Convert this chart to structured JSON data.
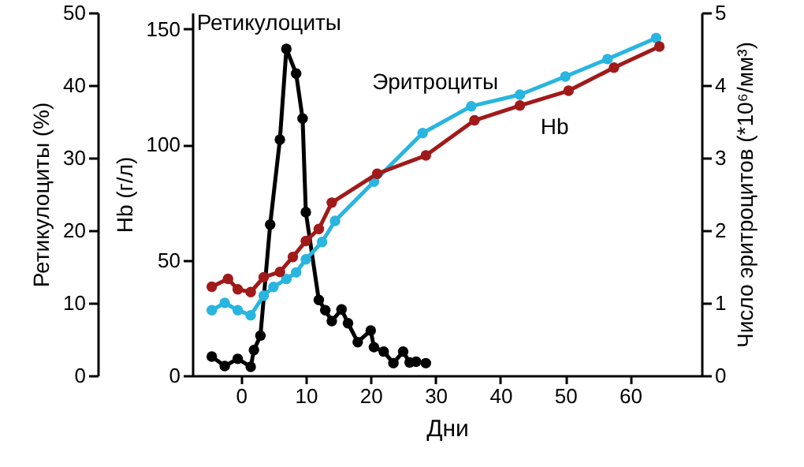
{
  "chart_data": {
    "type": "line",
    "xlabel": "Дни",
    "ylabel": "Hb (г/л)",
    "y2label": "Число эритроцитов (*10⁶/мм³)",
    "y3label": "Ретикулоциты (%)",
    "xlim": [
      -7.5,
      71
    ],
    "xticks": [
      0,
      10,
      20,
      30,
      40,
      50,
      60
    ],
    "ylim": [
      0,
      157
    ],
    "yticks": [
      0,
      50,
      100,
      150
    ],
    "y2lim": [
      0,
      5
    ],
    "y2ticks": [
      0,
      1,
      2,
      3,
      4,
      5
    ],
    "y3lim": [
      0,
      50
    ],
    "y3ticks": [
      0,
      10,
      20,
      30,
      40,
      50
    ],
    "grid": false,
    "marker": "circle",
    "line_style": "solid",
    "series": [
      {
        "name": "Ретикулоциты",
        "color": "#000000",
        "axis": "y3",
        "x": [
          -4.5,
          -2.5,
          -0.5,
          1.5,
          2,
          3,
          4.5,
          6,
          7,
          8.5,
          9.5,
          10,
          12,
          13,
          14,
          15.5,
          16.5,
          18,
          20,
          20.5,
          22,
          23.5,
          25,
          26,
          27,
          28.5
        ],
        "values": [
          2.6,
          1.3,
          2.3,
          1.2,
          3.5,
          5.5,
          20.8,
          32.5,
          45,
          41.6,
          35.4,
          22.5,
          10.4,
          9,
          7.5,
          9.1,
          7.2,
          4.6,
          6.2,
          3.9,
          3.3,
          1.7,
          3.3,
          1.8,
          1.9,
          1.7
        ]
      },
      {
        "name": "Эритроциты",
        "color": "#29b5e0",
        "axis": "y2",
        "x": [
          -4.5,
          -2.5,
          -0.5,
          1.5,
          3.5,
          5,
          7,
          8.5,
          10,
          12.5,
          14.5,
          20.5,
          28,
          35.5,
          43,
          50,
          56.5,
          64
        ],
        "values": [
          0.9,
          1.0,
          0.9,
          0.83,
          1.1,
          1.22,
          1.33,
          1.42,
          1.6,
          1.84,
          2.13,
          2.67,
          3.34,
          3.71,
          3.87,
          4.12,
          4.36,
          4.65
        ]
      },
      {
        "name": "Hb",
        "color": "#a01a1a",
        "axis": "y",
        "x": [
          -4.5,
          -2,
          -0.5,
          1.5,
          3.5,
          6,
          8,
          10,
          12,
          14,
          21,
          28.5,
          36,
          43,
          50.5,
          57.5,
          64.5
        ],
        "values": [
          38.4,
          41.8,
          37.3,
          36.1,
          42.5,
          44.8,
          51.3,
          58.2,
          63.4,
          74.8,
          87.3,
          95.2,
          110.4,
          116.8,
          123.2,
          133.2,
          142.3
        ]
      }
    ]
  }
}
